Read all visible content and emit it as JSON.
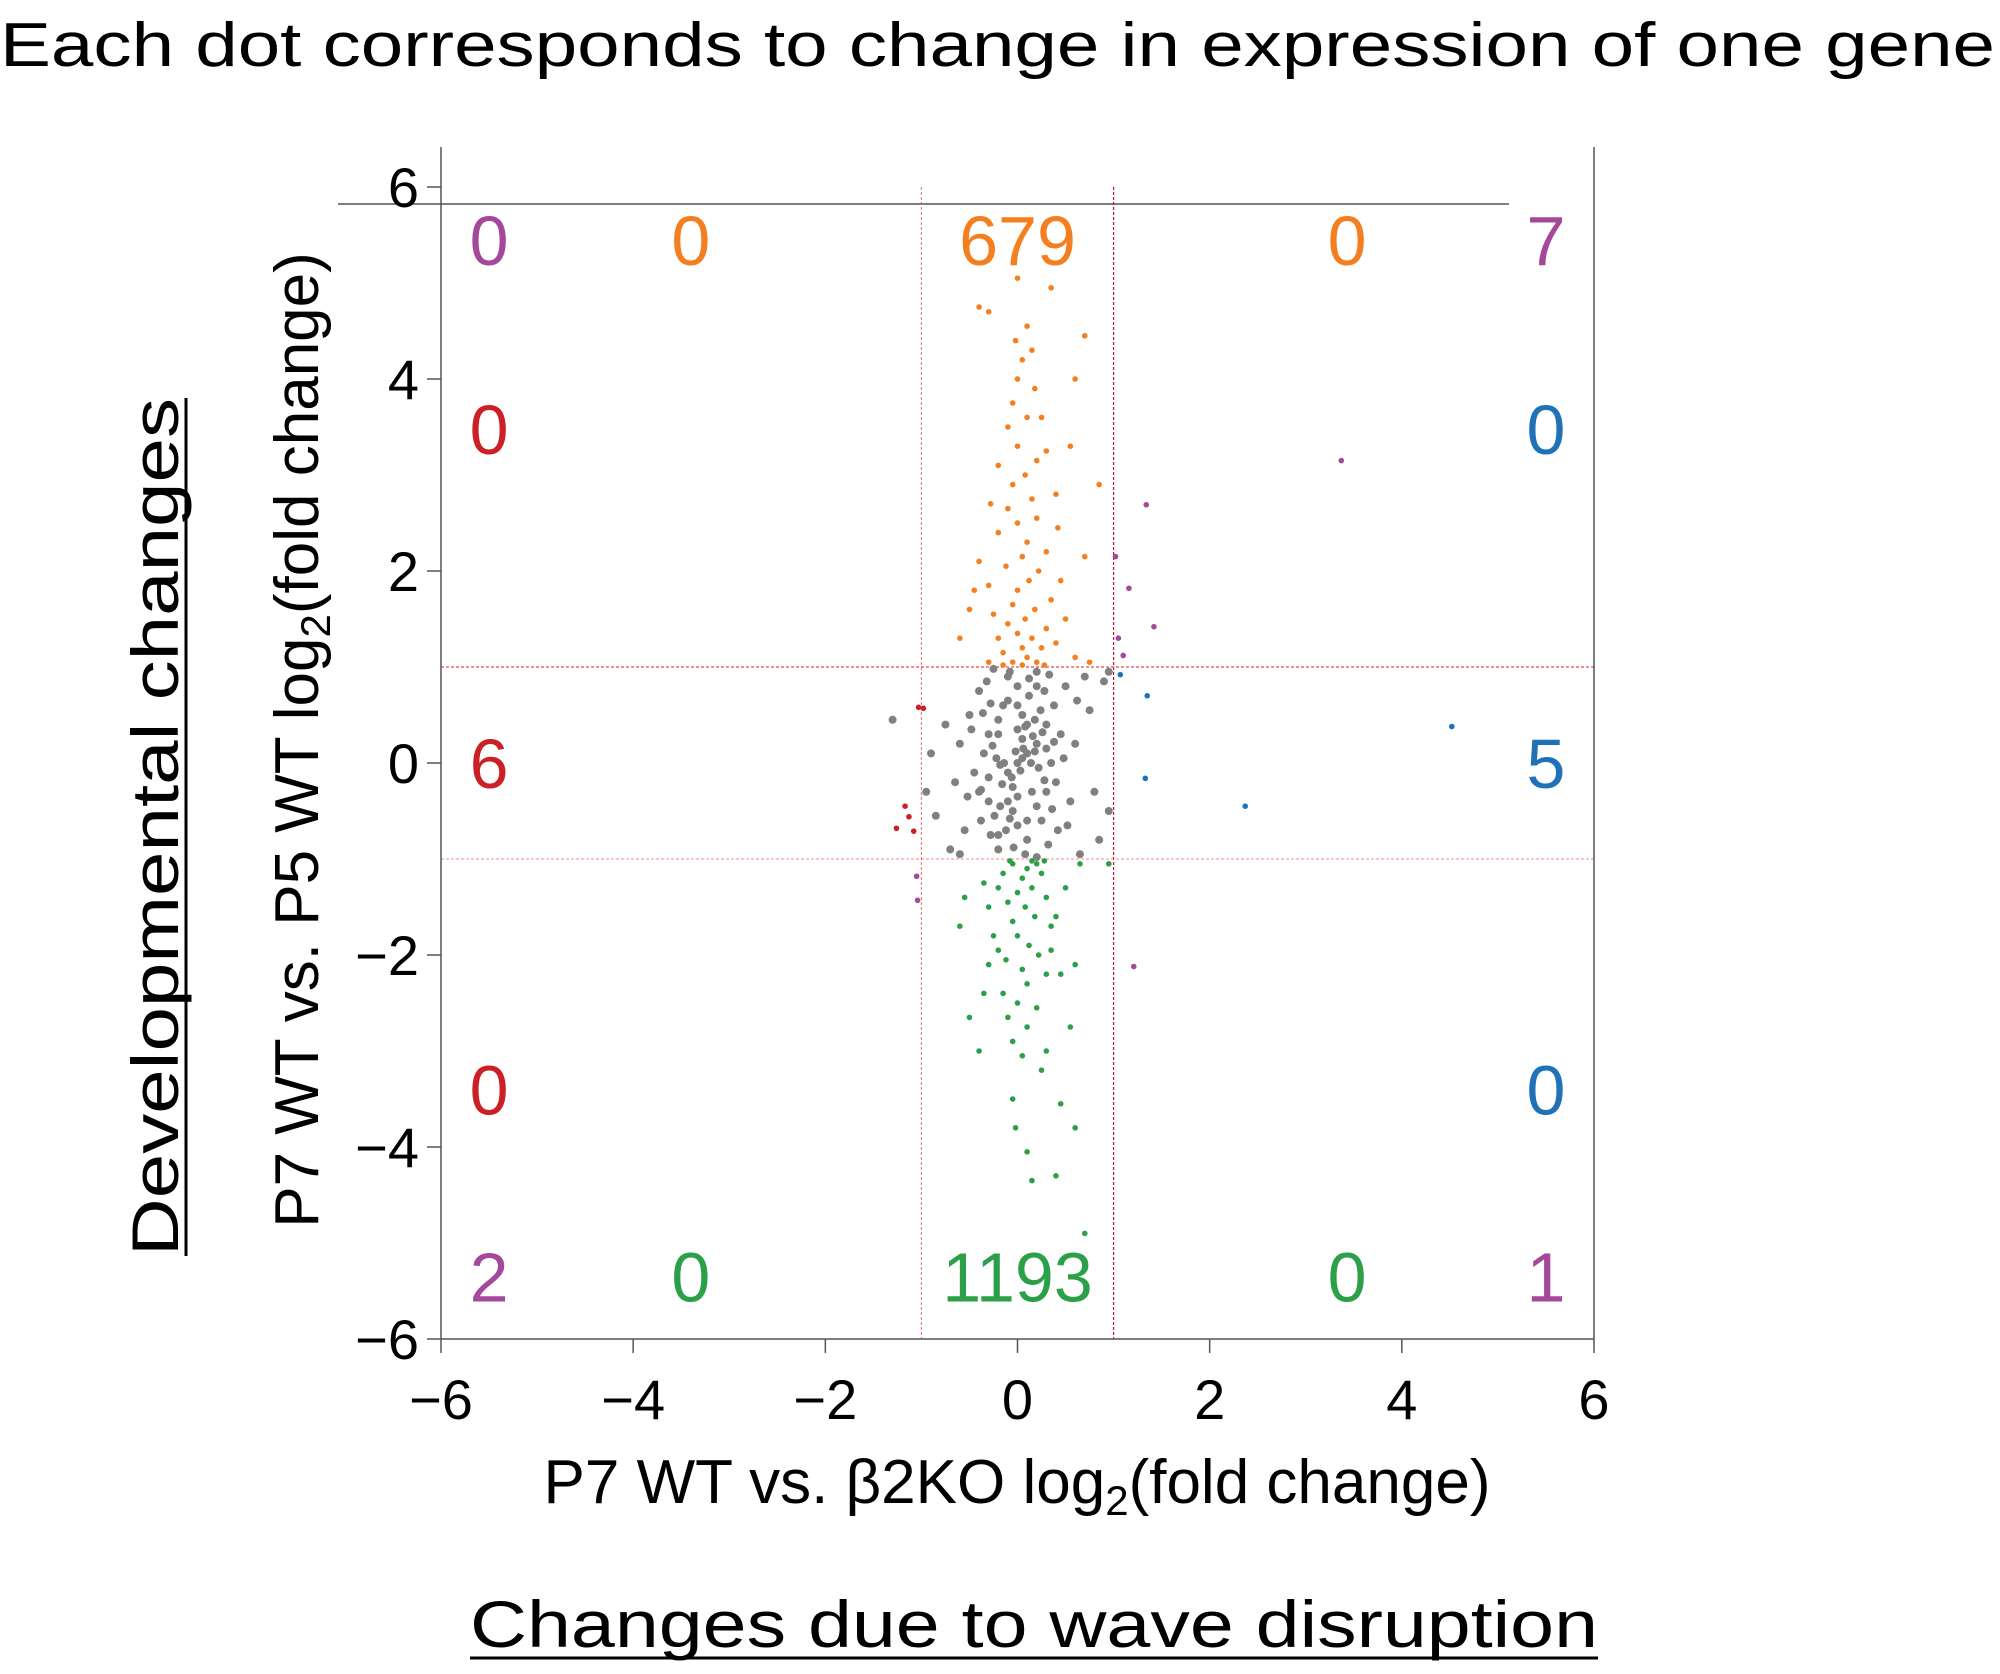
{
  "title": "Each dot corresponds to change in expression of one gene",
  "bottom_caption": "Changes due to wave disruption",
  "side_caption": "Developmental changes",
  "chart_data": {
    "type": "scatter",
    "xlabel": {
      "pre": "P7 WT vs. β2KO log",
      "sub": "2",
      "post": "(fold change)"
    },
    "ylabel": {
      "pre": "P7 WT vs. P5 WT log",
      "sub": "2",
      "post": "(fold change)"
    },
    "xlim": [
      -6,
      6
    ],
    "ylim": [
      -6,
      6
    ],
    "xticks": [
      "−6",
      "−4",
      "−2",
      "0",
      "2",
      "4",
      "6"
    ],
    "yticks": [
      "−6",
      "−4",
      "−2",
      "0",
      "2",
      "4",
      "6"
    ],
    "xtick_values": [
      -6,
      -4,
      -2,
      0,
      2,
      4,
      6
    ],
    "ytick_values": [
      -6,
      -4,
      -2,
      0,
      2,
      4,
      6
    ],
    "thresholds": {
      "x": [
        -1,
        1
      ],
      "y": [
        -1,
        1
      ]
    },
    "grid": false,
    "colors": {
      "up_development": "#f47f20",
      "down_development": "#2ca048",
      "unchanged": "#808080",
      "down_wave": "#cc2027",
      "up_wave": "#1f72b8",
      "both": "#a4489a",
      "threshold_line": "#e8343c"
    },
    "annotations": [
      {
        "text": "0",
        "x": -5.5,
        "y": 5.45,
        "color": "#a4489a"
      },
      {
        "text": "0",
        "x": -3.4,
        "y": 5.45,
        "color": "#f47f20"
      },
      {
        "text": "679",
        "x": 0,
        "y": 5.45,
        "color": "#f47f20"
      },
      {
        "text": "0",
        "x": 3.43,
        "y": 5.45,
        "color": "#f47f20"
      },
      {
        "text": "7",
        "x": 5.5,
        "y": 5.45,
        "color": "#a4489a"
      },
      {
        "text": "0",
        "x": -5.5,
        "y": 3.48,
        "color": "#cc2027"
      },
      {
        "text": "0",
        "x": 5.5,
        "y": 3.48,
        "color": "#1f72b8"
      },
      {
        "text": "6",
        "x": -5.5,
        "y": 0,
        "color": "#cc2027"
      },
      {
        "text": "5",
        "x": 5.5,
        "y": 0,
        "color": "#1f72b8"
      },
      {
        "text": "0",
        "x": -5.5,
        "y": -3.4,
        "color": "#cc2027"
      },
      {
        "text": "0",
        "x": 5.5,
        "y": -3.4,
        "color": "#1f72b8"
      },
      {
        "text": "2",
        "x": -5.5,
        "y": -5.35,
        "color": "#a4489a"
      },
      {
        "text": "0",
        "x": -3.4,
        "y": -5.35,
        "color": "#2ca048"
      },
      {
        "text": "1193",
        "x": 0,
        "y": -5.35,
        "color": "#2ca048"
      },
      {
        "text": "0",
        "x": 3.43,
        "y": -5.35,
        "color": "#2ca048"
      },
      {
        "text": "1",
        "x": 5.5,
        "y": -5.35,
        "color": "#a4489a"
      }
    ],
    "series": [
      {
        "group": "unchanged",
        "points": [
          [
            0,
            0
          ],
          [
            0.1,
            0.1
          ],
          [
            -0.1,
            -0.1
          ],
          [
            0.2,
            0.2
          ],
          [
            -0.2,
            0.3
          ],
          [
            0.05,
            0.5
          ],
          [
            -0.05,
            -0.5
          ],
          [
            0.15,
            -0.3
          ],
          [
            -0.15,
            0.6
          ],
          [
            0.25,
            -0.6
          ],
          [
            0.3,
            0.4
          ],
          [
            -0.3,
            -0.4
          ],
          [
            0.0,
            0.8
          ],
          [
            0.1,
            -0.8
          ],
          [
            -0.1,
            0.9
          ],
          [
            0.2,
            0.95
          ],
          [
            -0.2,
            -0.9
          ],
          [
            0.35,
            0.0
          ],
          [
            -0.35,
            0.1
          ],
          [
            0.4,
            -0.2
          ],
          [
            -0.4,
            -0.3
          ],
          [
            0.05,
            0.25
          ],
          [
            -0.05,
            -0.25
          ],
          [
            0.12,
            0.7
          ],
          [
            -0.12,
            -0.7
          ],
          [
            0.22,
            -0.05
          ],
          [
            -0.22,
            0.05
          ],
          [
            0.28,
            0.75
          ],
          [
            -0.28,
            -0.75
          ],
          [
            0.08,
            -0.95
          ],
          [
            -0.08,
            0.95
          ],
          [
            0.18,
            0.45
          ],
          [
            -0.18,
            -0.45
          ],
          [
            0.32,
            -0.85
          ],
          [
            -0.32,
            0.85
          ],
          [
            0.0,
            0.35
          ],
          [
            0.0,
            -0.35
          ],
          [
            0.0,
            0.6
          ],
          [
            0.0,
            -0.65
          ],
          [
            0.06,
            0.15
          ],
          [
            -0.06,
            -0.15
          ],
          [
            0.14,
            0.0
          ],
          [
            -0.14,
            0.0
          ],
          [
            0.24,
            0.55
          ],
          [
            -0.24,
            -0.55
          ],
          [
            0.3,
            0.15
          ],
          [
            -0.3,
            -0.15
          ],
          [
            0.38,
            0.6
          ],
          [
            -0.38,
            -0.6
          ],
          [
            0.45,
            0.3
          ],
          [
            -0.45,
            -0.1
          ],
          [
            0.5,
            0.8
          ],
          [
            -0.5,
            0.5
          ],
          [
            0.55,
            -0.4
          ],
          [
            -0.55,
            -0.7
          ],
          [
            0.6,
            0.2
          ],
          [
            -0.6,
            0.2
          ],
          [
            0.7,
            0.9
          ],
          [
            -0.75,
            0.4
          ],
          [
            0.8,
            -0.3
          ],
          [
            -0.85,
            -0.55
          ],
          [
            0.75,
            0.55
          ],
          [
            -0.7,
            -0.9
          ],
          [
            0.9,
            0.85
          ],
          [
            -0.9,
            0.1
          ],
          [
            0.85,
            -0.8
          ],
          [
            0.1,
            0.4
          ],
          [
            -0.1,
            -0.4
          ],
          [
            0.2,
            -0.45
          ],
          [
            -0.2,
            0.45
          ],
          [
            0.3,
            -0.3
          ],
          [
            -0.3,
            0.3
          ],
          [
            0.1,
            -0.6
          ],
          [
            -0.1,
            0.65
          ],
          [
            0.2,
            0.8
          ],
          [
            -0.2,
            -0.75
          ],
          [
            0.05,
            0.05
          ],
          [
            -0.02,
            0.12
          ],
          [
            0.03,
            -0.08
          ],
          [
            0.16,
            0.28
          ],
          [
            -0.16,
            -0.22
          ],
          [
            0.26,
            0.32
          ],
          [
            -0.26,
            0.18
          ],
          [
            0.36,
            -0.48
          ],
          [
            -0.36,
            0.52
          ],
          [
            0.12,
            0.88
          ],
          [
            -0.04,
            -0.88
          ],
          [
            0.2,
            -0.98
          ],
          [
            -0.25,
            0.98
          ],
          [
            0.33,
            0.92
          ],
          [
            -0.4,
            0.75
          ],
          [
            0.42,
            -0.7
          ],
          [
            0.08,
            0.38
          ],
          [
            -0.08,
            -0.58
          ],
          [
            0.18,
            0.12
          ],
          [
            -0.18,
            -0.02
          ],
          [
            0.28,
            -0.18
          ],
          [
            -0.28,
            0.62
          ],
          [
            0.38,
            0.22
          ],
          [
            -0.38,
            -0.28
          ],
          [
            0.48,
            0.05
          ],
          [
            -0.48,
            0.35
          ],
          [
            0.52,
            -0.65
          ],
          [
            -0.52,
            -0.35
          ],
          [
            0.62,
            0.65
          ],
          [
            -0.65,
            -0.2
          ],
          [
            0.95,
            0.95
          ],
          [
            -1.3,
            0.45
          ],
          [
            -0.95,
            -0.3
          ],
          [
            0.95,
            -0.5
          ],
          [
            0.65,
            -0.95
          ],
          [
            -0.6,
            -0.95
          ]
        ]
      },
      {
        "group": "up_development",
        "points": [
          [
            -0.05,
            1.05
          ],
          [
            0.1,
            1.1
          ],
          [
            0.2,
            1.05
          ],
          [
            -0.15,
            1.15
          ],
          [
            0.05,
            1.2
          ],
          [
            0.25,
            1.2
          ],
          [
            -0.2,
            1.3
          ],
          [
            0.0,
            1.35
          ],
          [
            0.15,
            1.3
          ],
          [
            -0.1,
            1.45
          ],
          [
            0.3,
            1.4
          ],
          [
            0.08,
            1.5
          ],
          [
            -0.25,
            1.55
          ],
          [
            0.18,
            1.6
          ],
          [
            -0.05,
            1.65
          ],
          [
            0.35,
            1.7
          ],
          [
            0.0,
            1.8
          ],
          [
            -0.3,
            1.85
          ],
          [
            0.12,
            1.9
          ],
          [
            0.22,
            2.0
          ],
          [
            -0.12,
            2.05
          ],
          [
            0.05,
            2.15
          ],
          [
            -0.4,
            2.1
          ],
          [
            0.3,
            2.2
          ],
          [
            0.1,
            2.3
          ],
          [
            -0.2,
            2.4
          ],
          [
            0.0,
            2.5
          ],
          [
            0.2,
            2.55
          ],
          [
            -0.1,
            2.65
          ],
          [
            0.15,
            2.75
          ],
          [
            0.4,
            2.8
          ],
          [
            -0.05,
            2.9
          ],
          [
            0.08,
            3.0
          ],
          [
            -0.2,
            3.1
          ],
          [
            0.2,
            3.15
          ],
          [
            0.0,
            3.3
          ],
          [
            0.3,
            3.25
          ],
          [
            -0.1,
            3.5
          ],
          [
            0.1,
            3.6
          ],
          [
            -0.05,
            3.75
          ],
          [
            0.18,
            3.9
          ],
          [
            0.0,
            4.0
          ],
          [
            0.05,
            4.2
          ],
          [
            -0.02,
            4.4
          ],
          [
            0.1,
            4.55
          ],
          [
            -0.4,
            4.75
          ],
          [
            0.35,
            4.95
          ],
          [
            -0.3,
            4.7
          ],
          [
            0.7,
            4.45
          ],
          [
            0.6,
            4.0
          ],
          [
            0.55,
            3.3
          ],
          [
            0.85,
            2.9
          ],
          [
            0.7,
            2.15
          ],
          [
            0.5,
            1.5
          ],
          [
            -0.5,
            1.6
          ],
          [
            -0.6,
            1.3
          ],
          [
            0.6,
            1.1
          ],
          [
            0.75,
            1.05
          ],
          [
            -0.45,
            1.8
          ],
          [
            0.4,
            1.25
          ],
          [
            0.28,
            1.02
          ],
          [
            -0.3,
            1.05
          ],
          [
            0.45,
            1.9
          ],
          [
            -0.28,
            2.7
          ],
          [
            0.25,
            3.6
          ],
          [
            0.15,
            4.3
          ],
          [
            0.0,
            5.05
          ],
          [
            0.42,
            2.45
          ],
          [
            -0.15,
            1.02
          ],
          [
            0.05,
            1.02
          ]
        ]
      },
      {
        "group": "down_development",
        "points": [
          [
            -0.05,
            -1.05
          ],
          [
            0.1,
            -1.1
          ],
          [
            0.2,
            -1.05
          ],
          [
            -0.15,
            -1.15
          ],
          [
            0.05,
            -1.2
          ],
          [
            0.25,
            -1.15
          ],
          [
            -0.2,
            -1.3
          ],
          [
            0.0,
            -1.35
          ],
          [
            0.15,
            -1.3
          ],
          [
            -0.1,
            -1.45
          ],
          [
            0.3,
            -1.4
          ],
          [
            0.08,
            -1.5
          ],
          [
            -0.3,
            -1.5
          ],
          [
            0.18,
            -1.6
          ],
          [
            -0.05,
            -1.65
          ],
          [
            0.35,
            -1.7
          ],
          [
            0.0,
            -1.8
          ],
          [
            -0.25,
            -1.8
          ],
          [
            0.12,
            -1.9
          ],
          [
            0.22,
            -2.0
          ],
          [
            -0.12,
            -2.05
          ],
          [
            0.05,
            -2.15
          ],
          [
            -0.3,
            -2.1
          ],
          [
            0.3,
            -2.2
          ],
          [
            0.1,
            -2.3
          ],
          [
            -0.15,
            -2.4
          ],
          [
            0.0,
            -2.5
          ],
          [
            0.2,
            -2.55
          ],
          [
            -0.1,
            -2.65
          ],
          [
            0.1,
            -2.75
          ],
          [
            -0.05,
            -2.9
          ],
          [
            0.05,
            -3.05
          ],
          [
            -0.5,
            -2.65
          ],
          [
            -0.4,
            -3.0
          ],
          [
            0.3,
            -3.0
          ],
          [
            0.25,
            -3.2
          ],
          [
            -0.05,
            -3.5
          ],
          [
            -0.02,
            -3.8
          ],
          [
            0.45,
            -3.55
          ],
          [
            0.1,
            -4.05
          ],
          [
            0.15,
            -4.35
          ],
          [
            0.4,
            -4.3
          ],
          [
            0.6,
            -3.8
          ],
          [
            0.7,
            -4.9
          ],
          [
            -0.55,
            -1.4
          ],
          [
            -0.6,
            -1.7
          ],
          [
            0.5,
            -1.3
          ],
          [
            0.65,
            -1.05
          ],
          [
            0.95,
            -1.05
          ],
          [
            0.45,
            -2.2
          ],
          [
            0.55,
            -2.75
          ],
          [
            0.35,
            -1.95
          ],
          [
            -0.35,
            -1.25
          ],
          [
            0.4,
            -1.6
          ],
          [
            -0.2,
            -1.95
          ],
          [
            0.15,
            -1.02
          ],
          [
            -0.08,
            -1.02
          ],
          [
            0.28,
            -1.02
          ],
          [
            -0.35,
            -2.4
          ],
          [
            0.6,
            -2.1
          ]
        ]
      },
      {
        "group": "down_wave",
        "points": [
          [
            -1.03,
            0.58
          ],
          [
            -0.98,
            0.57
          ],
          [
            -1.17,
            -0.45
          ],
          [
            -1.13,
            -0.56
          ],
          [
            -1.26,
            -0.68
          ],
          [
            -1.08,
            -0.71
          ]
        ]
      },
      {
        "group": "up_wave",
        "points": [
          [
            1.07,
            0.92
          ],
          [
            1.35,
            0.7
          ],
          [
            4.52,
            0.38
          ],
          [
            1.33,
            -0.16
          ],
          [
            2.37,
            -0.45
          ]
        ]
      },
      {
        "group": "both",
        "points": [
          [
            3.37,
            3.15
          ],
          [
            1.34,
            2.69
          ],
          [
            1.02,
            2.15
          ],
          [
            1.16,
            1.82
          ],
          [
            1.42,
            1.42
          ],
          [
            1.05,
            1.3
          ],
          [
            1.1,
            1.12
          ],
          [
            -1.05,
            -1.18
          ],
          [
            -1.04,
            -1.43
          ],
          [
            1.21,
            -2.12
          ]
        ]
      }
    ]
  }
}
